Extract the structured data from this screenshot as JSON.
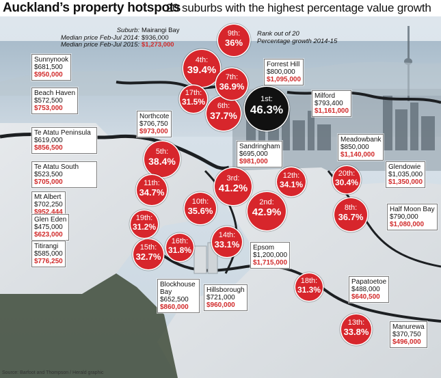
{
  "title": {
    "main": "Auckland’s property hotspots",
    "sub": "20 suburbs with the highest percentage value growth"
  },
  "legend": {
    "suburb_key": "Suburb:",
    "suburb_val": "Mairangi Bay",
    "old_key": "Median price Feb-Jul 2014:",
    "old_val": "$936,000",
    "new_key": "Median price Feb-Jul 2015:",
    "new_val": "$1,273,000",
    "rank_note": "Rank out of 20",
    "growth_note": "Percentage growth 2014-15"
  },
  "colors": {
    "accent_red": "#d7262c",
    "first_black": "#111111",
    "new_price_red": "#d12a2a"
  },
  "suburbs": [
    {
      "name": "Sunnynook",
      "old": "$681,500",
      "new": "$950,000"
    },
    {
      "name": "Beach Haven",
      "old": "$572,500",
      "new": "$753,000"
    },
    {
      "name": "Northcote",
      "old": "$706,750",
      "new": "$973,000"
    },
    {
      "name": "Te Atatu Peninsula",
      "old": "$619,000",
      "new": "$856,500"
    },
    {
      "name": "Te Atatu South",
      "old": "$523,500",
      "new": "$705,000"
    },
    {
      "name": "Mt Albert",
      "old": "$702,250",
      "new": "$952,444"
    },
    {
      "name": "Glen Eden",
      "old": "$475,000",
      "new": "$623,000"
    },
    {
      "name": "Titirangi",
      "old": "$585,000",
      "new": "$776,250"
    },
    {
      "name": "Forrest Hill",
      "old": "$800,000",
      "new": "$1,095,000"
    },
    {
      "name": "Milford",
      "old": "$793,400",
      "new": "$1,161,000"
    },
    {
      "name": "Sandringham",
      "old": "$695,000",
      "new": "$981,000"
    },
    {
      "name": "Meadowbank",
      "old": "$850,000",
      "new": "$1,140,000"
    },
    {
      "name": "Glendowie",
      "old": "$1,035,000",
      "new": "$1,350,000"
    },
    {
      "name": "Half Moon Bay",
      "old": "$790,000",
      "new": "$1,080,000"
    },
    {
      "name": "Epsom",
      "old": "$1,200,000",
      "new": "$1,715,000"
    },
    {
      "name": "Blockhouse Bay",
      "old": "$652,500",
      "new": "$860,000"
    },
    {
      "name": "Hillsborough",
      "old": "$721,000",
      "new": "$960,000"
    },
    {
      "name": "Papatoetoe",
      "old": "$488,000",
      "new": "$640,500"
    },
    {
      "name": "Manurewa",
      "old": "$370,750",
      "new": "$496,000"
    }
  ],
  "bubbles": [
    {
      "rank": "1st:",
      "pct": "46.3%"
    },
    {
      "rank": "2nd:",
      "pct": "42.9%"
    },
    {
      "rank": "3rd:",
      "pct": "41.2%"
    },
    {
      "rank": "4th:",
      "pct": "39.4%"
    },
    {
      "rank": "5th:",
      "pct": "38.4%"
    },
    {
      "rank": "6th:",
      "pct": "37.7%"
    },
    {
      "rank": "7th:",
      "pct": "36.9%"
    },
    {
      "rank": "8th:",
      "pct": "36.7%"
    },
    {
      "rank": "9th:",
      "pct": "36%"
    },
    {
      "rank": "10th:",
      "pct": "35.6%"
    },
    {
      "rank": "11th:",
      "pct": "34.7%"
    },
    {
      "rank": "12th:",
      "pct": "34.1%"
    },
    {
      "rank": "13th:",
      "pct": "33.8%"
    },
    {
      "rank": "14th:",
      "pct": "33.1%"
    },
    {
      "rank": "15th:",
      "pct": "32.7%"
    },
    {
      "rank": "16th:",
      "pct": "31.8%"
    },
    {
      "rank": "17th:",
      "pct": "31.5%"
    },
    {
      "rank": "18th:",
      "pct": "31.3%"
    },
    {
      "rank": "19th:",
      "pct": "31.2%"
    },
    {
      "rank": "20th:",
      "pct": "30.4%"
    }
  ],
  "source": "Source: Barfoot and Thompson / Herald graphic"
}
